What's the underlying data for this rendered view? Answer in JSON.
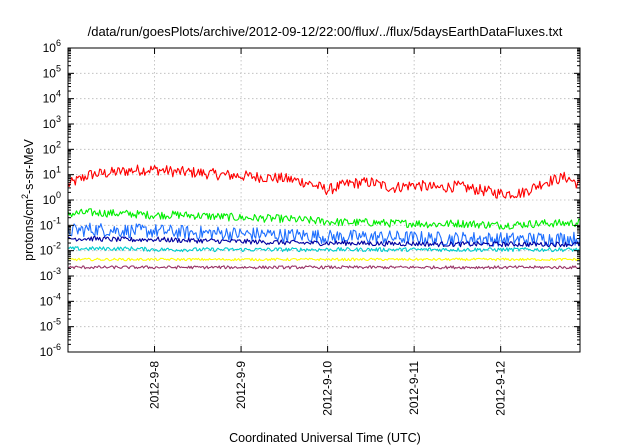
{
  "chart_data": {
    "type": "line",
    "title": "/data/run/goesPlots/archive/2012-09-12/22:00/flux/../flux/5daysEarthDataFluxes.txt",
    "xlabel": "Coordinated Universal Time (UTC)",
    "ylabel": {
      "prefix": "protons/cm",
      "sup": "2",
      "suffix": "-s-sr-MeV"
    },
    "yscale": "log",
    "ylim": [
      1e-06,
      1000000.0
    ],
    "y_ticks": [
      {
        "base": "10",
        "exp": "-6"
      },
      {
        "base": "10",
        "exp": "-5"
      },
      {
        "base": "10",
        "exp": "-4"
      },
      {
        "base": "10",
        "exp": "-3"
      },
      {
        "base": "10",
        "exp": "-2"
      },
      {
        "base": "10",
        "exp": "-1"
      },
      {
        "base": "10",
        "exp": "0"
      },
      {
        "base": "10",
        "exp": "1"
      },
      {
        "base": "10",
        "exp": "2"
      },
      {
        "base": "10",
        "exp": "3"
      },
      {
        "base": "10",
        "exp": "4"
      },
      {
        "base": "10",
        "exp": "5"
      },
      {
        "base": "10",
        "exp": "6"
      }
    ],
    "xlim": [
      "2012-09-07 00:00",
      "2012-09-12 22:00"
    ],
    "x_ticks": [
      "2012-9-8",
      "2012-9-9",
      "2012-9-10",
      "2012-9-11",
      "2012-9-12"
    ],
    "grid": true,
    "x": [
      "2012-09-07 00:00",
      "2012-09-07 06:00",
      "2012-09-07 12:00",
      "2012-09-07 18:00",
      "2012-09-08 00:00",
      "2012-09-08 06:00",
      "2012-09-08 12:00",
      "2012-09-08 18:00",
      "2012-09-09 00:00",
      "2012-09-09 06:00",
      "2012-09-09 12:00",
      "2012-09-09 18:00",
      "2012-09-10 00:00",
      "2012-09-10 06:00",
      "2012-09-10 12:00",
      "2012-09-10 18:00",
      "2012-09-11 00:00",
      "2012-09-11 06:00",
      "2012-09-11 12:00",
      "2012-09-11 18:00",
      "2012-09-12 00:00",
      "2012-09-12 06:00",
      "2012-09-12 12:00",
      "2012-09-12 18:00",
      "2012-09-12 22:00"
    ],
    "series": [
      {
        "color": "#ff0000",
        "values": [
          4,
          10,
          12,
          15,
          16,
          13,
          12,
          10,
          9,
          8,
          7,
          5,
          2.5,
          4.5,
          5,
          3,
          4,
          3,
          3.5,
          2.5,
          1.8,
          1.9,
          5,
          8,
          4
        ]
      },
      {
        "color": "#00ee00",
        "values": [
          0.28,
          0.32,
          0.3,
          0.28,
          0.25,
          0.26,
          0.24,
          0.22,
          0.2,
          0.19,
          0.18,
          0.16,
          0.14,
          0.13,
          0.13,
          0.12,
          0.12,
          0.11,
          0.12,
          0.11,
          0.1,
          0.11,
          0.12,
          0.12,
          0.13
        ]
      },
      {
        "color": "#1e6fff",
        "values": [
          0.06,
          0.07,
          0.065,
          0.06,
          0.06,
          0.055,
          0.05,
          0.05,
          0.045,
          0.045,
          0.04,
          0.04,
          0.035,
          0.035,
          0.035,
          0.033,
          0.032,
          0.03,
          0.03,
          0.03,
          0.028,
          0.028,
          0.03,
          0.03,
          0.03
        ]
      },
      {
        "color": "#0000a0",
        "values": [
          0.03,
          0.03,
          0.028,
          0.027,
          0.028,
          0.026,
          0.025,
          0.024,
          0.023,
          0.022,
          0.021,
          0.02,
          0.02,
          0.02,
          0.019,
          0.019,
          0.019,
          0.018,
          0.018,
          0.018,
          0.018,
          0.018,
          0.018,
          0.018,
          0.018
        ]
      },
      {
        "color": "#00cccc",
        "values": [
          0.012,
          0.012,
          0.012,
          0.012,
          0.011,
          0.011,
          0.011,
          0.011,
          0.011,
          0.011,
          0.011,
          0.011,
          0.011,
          0.011,
          0.011,
          0.011,
          0.011,
          0.011,
          0.011,
          0.011,
          0.011,
          0.011,
          0.011,
          0.011,
          0.011
        ]
      },
      {
        "color": "#ffff00",
        "values": [
          0.0045,
          0.0045,
          0.0045,
          0.0045,
          0.0045,
          0.0045,
          0.0045,
          0.0045,
          0.0045,
          0.0045,
          0.0045,
          0.0045,
          0.0045,
          0.0045,
          0.0045,
          0.0045,
          0.0045,
          0.0045,
          0.0045,
          0.0045,
          0.0045,
          0.0045,
          0.0045,
          0.0045,
          0.0045
        ]
      },
      {
        "color": "#993366",
        "values": [
          0.0022,
          0.0022,
          0.0022,
          0.0022,
          0.0022,
          0.0022,
          0.0022,
          0.0022,
          0.0022,
          0.0022,
          0.0022,
          0.0022,
          0.0022,
          0.0022,
          0.0022,
          0.0022,
          0.0022,
          0.0022,
          0.0022,
          0.0022,
          0.0022,
          0.0022,
          0.0022,
          0.0022,
          0.0022
        ]
      }
    ]
  }
}
